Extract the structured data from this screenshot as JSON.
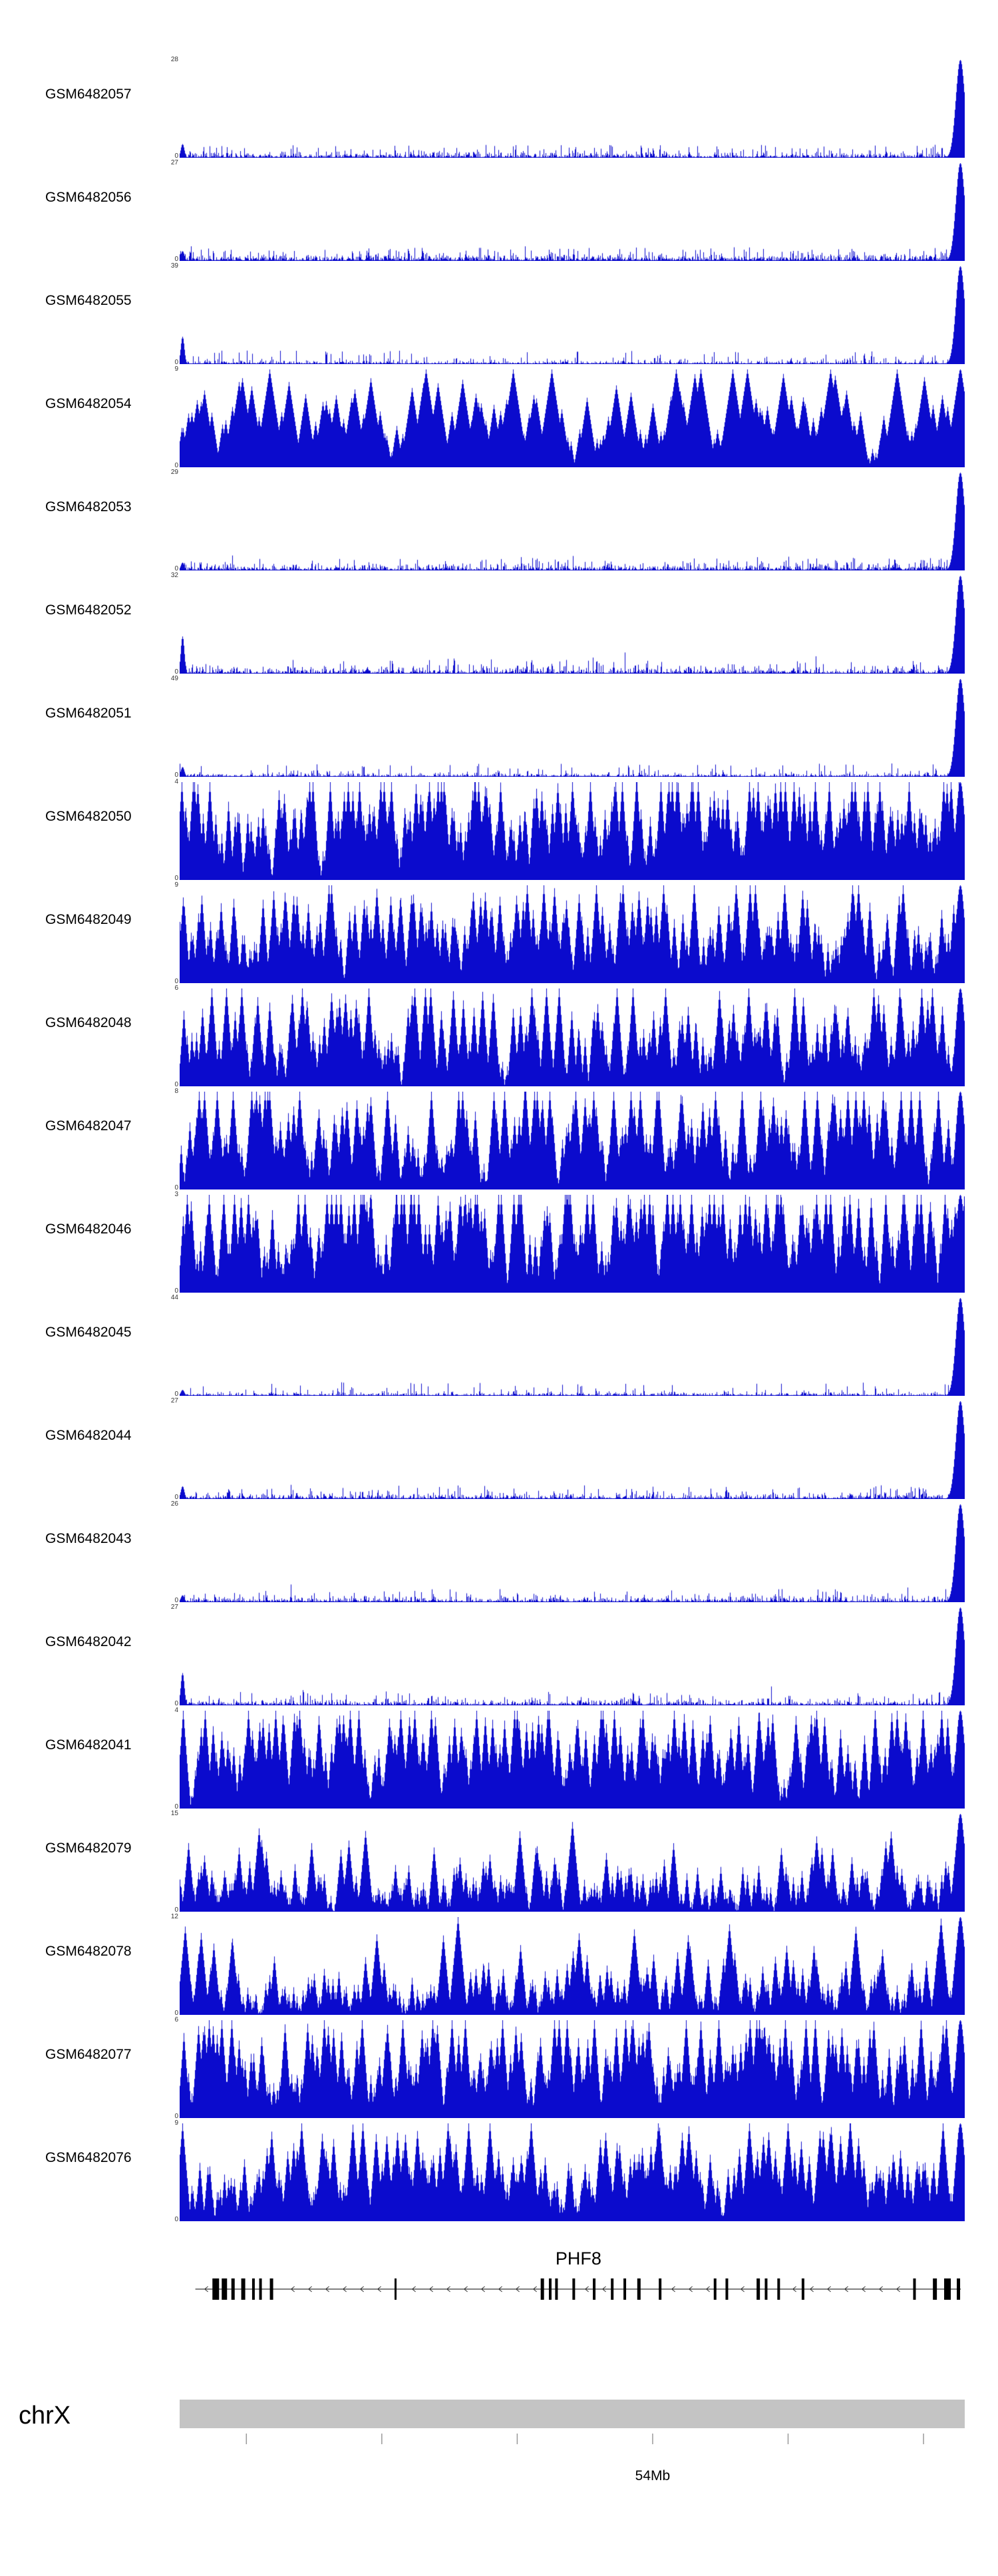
{
  "page": {
    "background": "#ffffff"
  },
  "signal_color": "#0b0bcd",
  "chart_data": {
    "type": "area",
    "description": "Genome browser read-coverage tracks across the PHF8 locus on chromosome X; each track is a GEO sample (GSM) signal histogram, y-axis from 0 to the per-track maximum shown at top-left.",
    "legend_position": "left-labels",
    "grid": false,
    "y_axis": {
      "min_label": "0"
    },
    "tracks": [
      {
        "label": "GSM6482057",
        "ymax": 28,
        "profile": "peak",
        "base": 0.02,
        "left_spike": 0.14,
        "right_peak": 1
      },
      {
        "label": "GSM6482056",
        "ymax": 27,
        "profile": "peak",
        "base": 0.025,
        "left_spike": 0.1,
        "right_peak": 1
      },
      {
        "label": "GSM6482055",
        "ymax": 39,
        "profile": "peak",
        "base": 0.013,
        "left_spike": 0.28,
        "right_peak": 1
      },
      {
        "label": "GSM6482054",
        "ymax": 9,
        "profile": "dense",
        "mean": 0.22,
        "full_p": 0.008,
        "decay": 0.045,
        "right_peak": 1
      },
      {
        "label": "GSM6482053",
        "ymax": 29,
        "profile": "peak",
        "base": 0.025,
        "left_spike": 0.08,
        "right_peak": 1
      },
      {
        "label": "GSM6482052",
        "ymax": 32,
        "profile": "peak",
        "base": 0.022,
        "left_spike": 0.38,
        "right_peak": 1
      },
      {
        "label": "GSM6482051",
        "ymax": 49,
        "profile": "peak",
        "base": 0.013,
        "left_spike": 0.1,
        "right_peak": 1
      },
      {
        "label": "GSM6482050",
        "ymax": 4,
        "profile": "dense",
        "mean": 0.32,
        "full_p": 0.02,
        "decay": 0.1,
        "right_peak": 1
      },
      {
        "label": "GSM6482049",
        "ymax": 9,
        "profile": "dense",
        "mean": 0.26,
        "full_p": 0.012,
        "decay": 0.09,
        "right_peak": 1
      },
      {
        "label": "GSM6482048",
        "ymax": 6,
        "profile": "dense",
        "mean": 0.24,
        "full_p": 0.01,
        "decay": 0.09,
        "right_peak": 1
      },
      {
        "label": "GSM6482047",
        "ymax": 8,
        "profile": "dense",
        "mean": 0.26,
        "full_p": 0.012,
        "decay": 0.09,
        "right_peak": 1
      },
      {
        "label": "GSM6482046",
        "ymax": 3,
        "profile": "dense",
        "mean": 0.33,
        "full_p": 0.02,
        "decay": 0.1,
        "right_peak": 1
      },
      {
        "label": "GSM6482045",
        "ymax": 44,
        "profile": "peak",
        "base": 0.012,
        "left_spike": 0.06,
        "right_peak": 1
      },
      {
        "label": "GSM6482044",
        "ymax": 27,
        "profile": "peak",
        "base": 0.02,
        "left_spike": 0.13,
        "right_peak": 1
      },
      {
        "label": "GSM6482043",
        "ymax": 26,
        "profile": "peak",
        "base": 0.02,
        "left_spike": 0.07,
        "right_peak": 1
      },
      {
        "label": "GSM6482042",
        "ymax": 27,
        "profile": "peak",
        "base": 0.02,
        "left_spike": 0.33,
        "right_peak": 1
      },
      {
        "label": "GSM6482041",
        "ymax": 4,
        "profile": "dense",
        "mean": 0.27,
        "full_p": 0.012,
        "decay": 0.09,
        "right_peak": 1
      },
      {
        "label": "GSM6482079",
        "ymax": 15,
        "profile": "dense",
        "mean": 0.14,
        "full_p": 0.01,
        "decay": 0.07,
        "right_peak": 1
      },
      {
        "label": "GSM6482078",
        "ymax": 12,
        "profile": "dense",
        "mean": 0.14,
        "full_p": 0.01,
        "decay": 0.07,
        "right_peak": 1
      },
      {
        "label": "GSM6482077",
        "ymax": 6,
        "profile": "dense",
        "mean": 0.28,
        "full_p": 0.012,
        "decay": 0.09,
        "right_peak": 1
      },
      {
        "label": "GSM6482076",
        "ymax": 9,
        "profile": "dense",
        "mean": 0.22,
        "full_p": 0.012,
        "decay": 0.08,
        "right_peak": 1
      }
    ],
    "gene_track": {
      "gene": "PHF8",
      "strand_direction": "left",
      "span": [
        0.02,
        0.995
      ],
      "exons": [
        [
          0.046,
          10
        ],
        [
          0.057,
          8
        ],
        [
          0.068,
          5
        ],
        [
          0.081,
          6
        ],
        [
          0.094,
          4
        ],
        [
          0.103,
          4
        ],
        [
          0.117,
          5
        ],
        [
          0.275,
          3
        ],
        [
          0.462,
          5
        ],
        [
          0.472,
          4
        ],
        [
          0.48,
          4
        ],
        [
          0.502,
          4
        ],
        [
          0.528,
          4
        ],
        [
          0.551,
          4
        ],
        [
          0.567,
          4
        ],
        [
          0.585,
          5
        ],
        [
          0.612,
          4
        ],
        [
          0.682,
          4
        ],
        [
          0.697,
          4
        ],
        [
          0.737,
          5
        ],
        [
          0.747,
          4
        ],
        [
          0.763,
          4
        ],
        [
          0.794,
          4
        ],
        [
          0.936,
          4
        ],
        [
          0.962,
          6
        ],
        [
          0.978,
          10
        ],
        [
          0.992,
          5
        ]
      ]
    },
    "chromosome_track": {
      "label": "chrX",
      "bar_color": "#c4c4c4",
      "ticks": [
        0.085,
        0.2575,
        0.43,
        0.6025,
        0.775,
        0.9475
      ],
      "tick_label": "54Mb",
      "tick_label_position": 0.6025
    }
  }
}
